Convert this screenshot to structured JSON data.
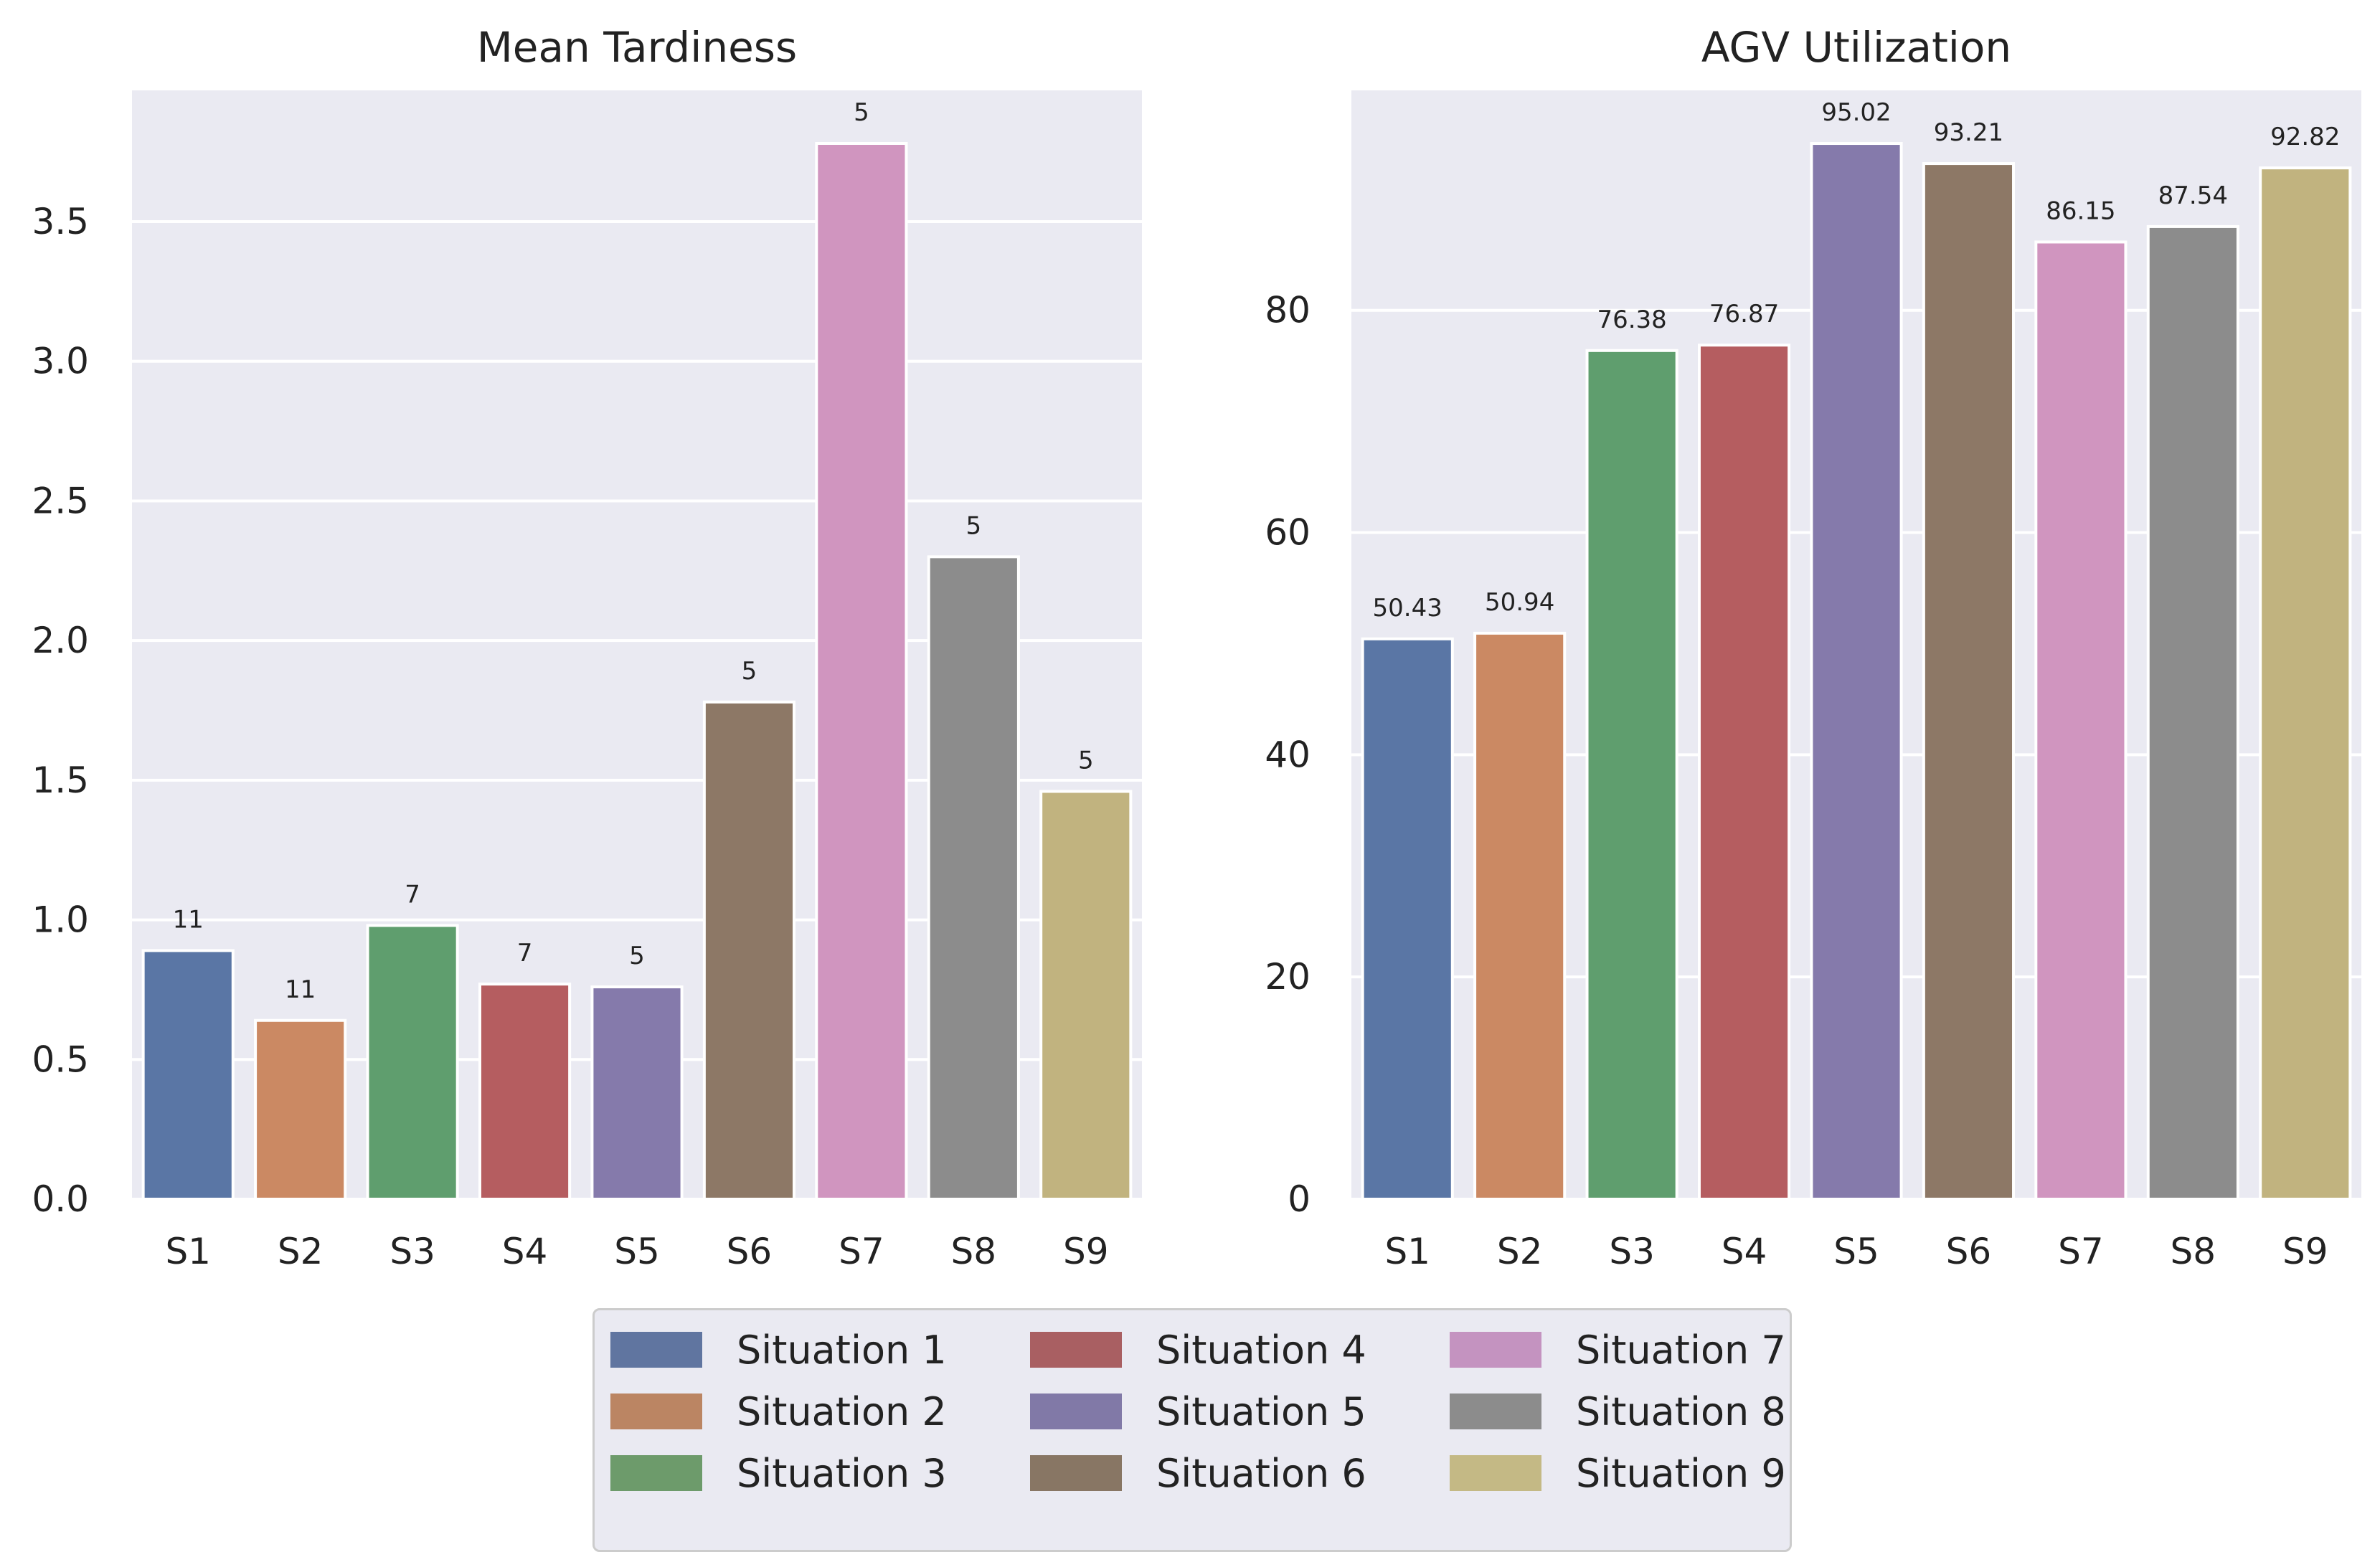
{
  "colors": [
    "#5a76a5",
    "#cb8963",
    "#5f9e6e",
    "#b55d60",
    "#857aab",
    "#8d7866",
    "#d095bf",
    "#8c8c8c",
    "#c1b37f"
  ],
  "legend_colors": [
    "#6075a0",
    "#bb8563",
    "#6d9b6b",
    "#a95f62",
    "#8179a7",
    "#887664",
    "#c493c0",
    "#8c8c8c",
    "#c4b985"
  ],
  "chart_data": [
    {
      "type": "bar",
      "title": "Mean Tardiness",
      "categories": [
        "S1",
        "S2",
        "S3",
        "S4",
        "S5",
        "S6",
        "S7",
        "S8",
        "S9"
      ],
      "values": [
        0.89,
        0.64,
        0.98,
        0.77,
        0.76,
        1.78,
        3.78,
        2.3,
        1.46
      ],
      "bar_labels": [
        "11",
        "11",
        "7",
        "7",
        "5",
        "5",
        "5",
        "5",
        "5"
      ],
      "ylim": [
        0,
        3.97
      ],
      "yticks": [
        "0.0",
        "0.5",
        "1.0",
        "1.5",
        "2.0",
        "2.5",
        "3.0",
        "3.5"
      ],
      "ytick_values": [
        0,
        0.5,
        1.0,
        1.5,
        2.0,
        2.5,
        3.0,
        3.5
      ],
      "grid": true
    },
    {
      "type": "bar",
      "title": "AGV Utilization",
      "categories": [
        "S1",
        "S2",
        "S3",
        "S4",
        "S5",
        "S6",
        "S7",
        "S8",
        "S9"
      ],
      "values": [
        50.43,
        50.94,
        76.38,
        76.87,
        95.02,
        93.21,
        86.15,
        87.54,
        92.82
      ],
      "bar_labels": [
        "50.43",
        "50.94",
        "76.38",
        "76.87",
        "95.02",
        "93.21",
        "86.15",
        "87.54",
        "92.82"
      ],
      "ylim": [
        0,
        99.8
      ],
      "yticks": [
        "0",
        "20",
        "40",
        "60",
        "80"
      ],
      "ytick_values": [
        0,
        20,
        40,
        60,
        80
      ],
      "grid": true
    }
  ],
  "legend": {
    "position": "bottom-center",
    "entries": [
      "Situation 1",
      "Situation 2",
      "Situation 3",
      "Situation 4",
      "Situation 5",
      "Situation 6",
      "Situation 7",
      "Situation 8",
      "Situation 9"
    ]
  }
}
